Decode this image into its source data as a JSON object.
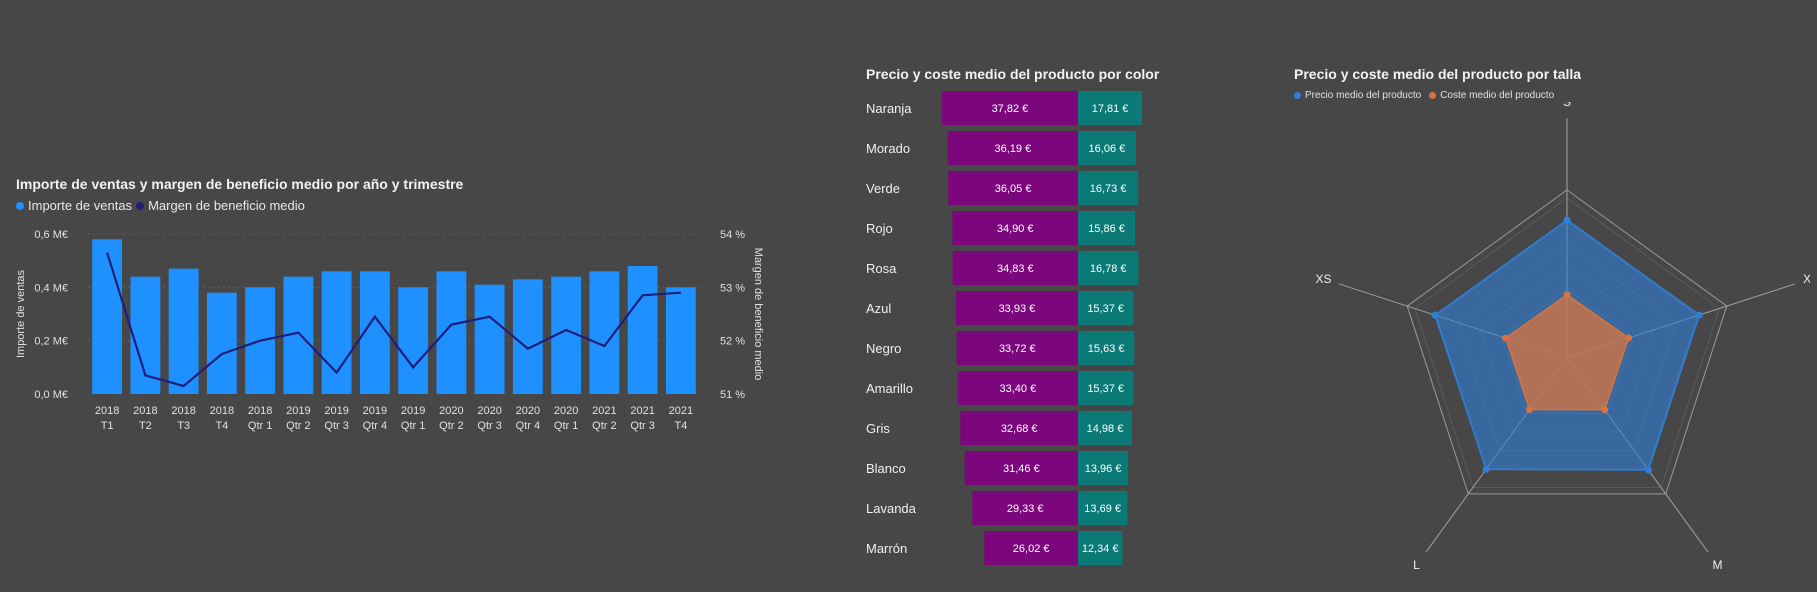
{
  "charts": {
    "combo": {
      "title": "Importe de ventas y margen de beneficio medio por año y trimestre",
      "legend": [
        {
          "label": "Importe de ventas",
          "color": "#1e90ff"
        },
        {
          "label": "Margen de beneficio medio",
          "color": "#1f1f7a"
        }
      ]
    },
    "bars": {
      "title": "Precio y coste medio del producto por color"
    },
    "radar": {
      "title": "Precio y coste medio del producto por talla",
      "legend": [
        {
          "label": "Precio medio del producto",
          "color": "#2f7fd8"
        },
        {
          "label": "Coste medio del producto",
          "color": "#d9743f"
        }
      ]
    }
  },
  "chart_data": [
    {
      "type": "bar",
      "title": "Importe de ventas y margen de beneficio medio por año y trimestre",
      "categories": [
        [
          "2018",
          "T1"
        ],
        [
          "2018",
          "T2"
        ],
        [
          "2018",
          "T3"
        ],
        [
          "2018",
          "T4"
        ],
        [
          "2018",
          "Qtr 1"
        ],
        [
          "2019",
          "Qtr 2"
        ],
        [
          "2019",
          "Qtr 3"
        ],
        [
          "2019",
          "Qtr 4"
        ],
        [
          "2019",
          "Qtr 1"
        ],
        [
          "2020",
          "Qtr 2"
        ],
        [
          "2020",
          "Qtr 3"
        ],
        [
          "2020",
          "Qtr 4"
        ],
        [
          "2020",
          "Qtr 1"
        ],
        [
          "2021",
          "Qtr 2"
        ],
        [
          "2021",
          "Qtr 3"
        ],
        [
          "2021",
          "T4"
        ]
      ],
      "ylabel": "Importe de ventas",
      "y2label": "Margen de beneficio medio",
      "ylim": [
        0,
        0.6
      ],
      "y2lim": [
        51,
        54
      ],
      "yticks": [
        "0,0 M€",
        "0,2 M€",
        "0,4 M€",
        "0,6 M€"
      ],
      "y2ticks": [
        "51 %",
        "52 %",
        "53 %",
        "54 %"
      ],
      "grid": true,
      "series": [
        {
          "name": "Importe de ventas",
          "kind": "bar",
          "color": "#1e90ff",
          "values": [
            0.58,
            0.44,
            0.47,
            0.38,
            0.4,
            0.44,
            0.46,
            0.46,
            0.4,
            0.46,
            0.41,
            0.43,
            0.44,
            0.46,
            0.48,
            0.4
          ]
        },
        {
          "name": "Margen de beneficio medio",
          "kind": "line",
          "color": "#1f1f7a",
          "values": [
            53.65,
            51.35,
            51.15,
            51.75,
            52.0,
            52.15,
            51.4,
            52.45,
            51.5,
            52.3,
            52.45,
            51.85,
            52.2,
            51.9,
            52.85,
            52.9
          ]
        }
      ]
    },
    {
      "type": "bar",
      "orientation": "horizontal-stacked",
      "title": "Precio y coste medio del producto por color",
      "categories": [
        "Naranja",
        "Morado",
        "Verde",
        "Rojo",
        "Rosa",
        "Azul",
        "Negro",
        "Amarillo",
        "Gris",
        "Blanco",
        "Lavanda",
        "Marrón"
      ],
      "series": [
        {
          "name": "Precio medio del producto",
          "color": "#7c077c",
          "values": [
            37.82,
            36.19,
            36.05,
            34.9,
            34.83,
            33.93,
            33.72,
            33.4,
            32.68,
            31.46,
            29.33,
            26.02
          ],
          "labels": [
            "37,82 €",
            "36,19 €",
            "36,05 €",
            "34,90 €",
            "34,83 €",
            "33,93 €",
            "33,72 €",
            "33,40 €",
            "32,68 €",
            "31,46 €",
            "29,33 €",
            "26,02 €"
          ]
        },
        {
          "name": "Coste medio del producto",
          "color": "#0b7a76",
          "values": [
            17.81,
            16.06,
            16.73,
            15.86,
            16.78,
            15.37,
            15.63,
            15.37,
            14.98,
            13.96,
            13.69,
            12.34
          ],
          "labels": [
            "17,81 €",
            "16,06 €",
            "16,73 €",
            "15,86 €",
            "16,78 €",
            "15,37 €",
            "15,63 €",
            "15,37 €",
            "14,98 €",
            "13,96 €",
            "13,69 €",
            "12,34 €"
          ]
        }
      ]
    },
    {
      "type": "radar",
      "title": "Precio y coste medio del producto por talla",
      "categories": [
        "S",
        "XL",
        "M",
        "L",
        "XS"
      ],
      "legend_position": "top-left",
      "series": [
        {
          "name": "Precio medio del producto",
          "color": "#2f7fd8",
          "values": [
            34.5,
            34.8,
            34.6,
            34.4,
            34.7
          ]
        },
        {
          "name": "Coste medio del producto",
          "color": "#d9743f",
          "values": [
            15.8,
            16.2,
            16.0,
            15.9,
            16.1
          ]
        }
      ],
      "rmax": 40
    }
  ]
}
